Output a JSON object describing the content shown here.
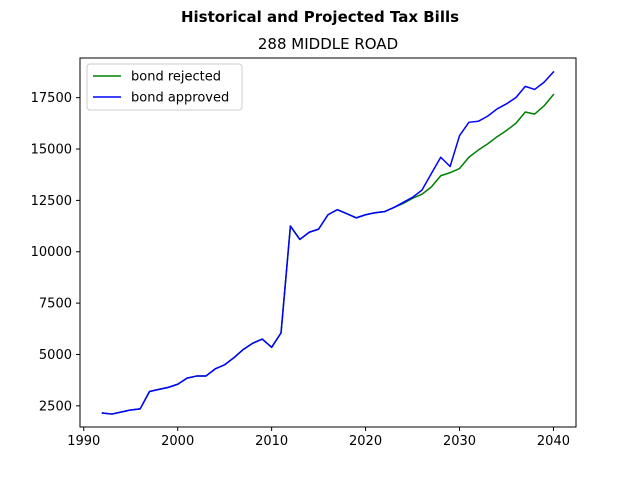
{
  "chart_data": {
    "type": "line",
    "suptitle": "Historical and Projected Tax Bills",
    "title": "288 MIDDLE ROAD",
    "xlabel": "",
    "ylabel": "",
    "xlim": [
      1989.6,
      2042.4
    ],
    "ylim": [
      1470,
      19430
    ],
    "x_ticks": [
      1990,
      2000,
      2010,
      2020,
      2030,
      2040
    ],
    "y_ticks": [
      2500,
      5000,
      7500,
      10000,
      12500,
      15000,
      17500
    ],
    "x_tick_labels": [
      "1990",
      "2000",
      "2010",
      "2020",
      "2030",
      "2040"
    ],
    "y_tick_labels": [
      "2500",
      "5000",
      "7500",
      "10000",
      "12500",
      "15000",
      "17500"
    ],
    "grid": false,
    "legend_position": "top-left",
    "colors": {
      "bond_rejected": "#008000",
      "bond_approved": "#0000ff"
    },
    "x": [
      1992,
      1993,
      1994,
      1995,
      1996,
      1997,
      1998,
      1999,
      2000,
      2001,
      2002,
      2003,
      2004,
      2005,
      2006,
      2007,
      2008,
      2009,
      2010,
      2011,
      2012,
      2013,
      2014,
      2015,
      2016,
      2017,
      2018,
      2019,
      2020,
      2021,
      2022,
      2023,
      2024,
      2025,
      2026,
      2027,
      2028,
      2029,
      2030,
      2031,
      2032,
      2033,
      2034,
      2035,
      2036,
      2037,
      2038,
      2039,
      2040
    ],
    "series": [
      {
        "name": "bond rejected",
        "color": "#008000",
        "values": [
          2150,
          2100,
          2200,
          2300,
          2350,
          3200,
          3300,
          3400,
          3550,
          3850,
          3950,
          3950,
          4300,
          4500,
          4850,
          5250,
          5550,
          5750,
          5350,
          6050,
          11250,
          10600,
          10950,
          11100,
          11800,
          12050,
          11850,
          11650,
          11800,
          11900,
          11950,
          12150,
          12350,
          12600,
          12800,
          13150,
          13700,
          13850,
          14050,
          14600,
          14950,
          15250,
          15600,
          15900,
          16250,
          16800,
          16700,
          17100,
          17650
        ]
      },
      {
        "name": "bond approved",
        "color": "#0000ff",
        "values": [
          2150,
          2100,
          2200,
          2300,
          2350,
          3200,
          3300,
          3400,
          3550,
          3850,
          3950,
          3950,
          4300,
          4500,
          4850,
          5250,
          5550,
          5750,
          5350,
          6050,
          11250,
          10600,
          10950,
          11100,
          11800,
          12050,
          11850,
          11650,
          11800,
          11900,
          11950,
          12150,
          12400,
          12650,
          13000,
          13800,
          14600,
          14150,
          15650,
          16300,
          16350,
          16600,
          16950,
          17200,
          17500,
          18050,
          17900,
          18250,
          18750
        ]
      }
    ]
  }
}
